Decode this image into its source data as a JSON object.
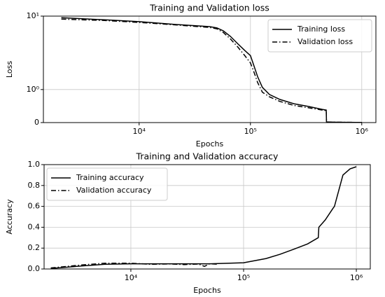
{
  "chart_data": [
    {
      "type": "line",
      "title": "Training and Validation loss",
      "xlabel": "Epochs",
      "ylabel": "Loss",
      "xscale": "log",
      "yscale": "symlog",
      "grid": true,
      "legend": "upper right",
      "xlim": [
        1380,
        1340000
      ],
      "xticks": [
        {
          "value": 10000,
          "label": "10⁴"
        },
        {
          "value": 100000,
          "label": "10⁵"
        },
        {
          "value": 1000000,
          "label": "10⁶"
        }
      ],
      "ylim": [
        0,
        10
      ],
      "yticks": [
        0,
        {
          "value": 1,
          "label": "10⁰"
        },
        {
          "value": 10,
          "label": "10¹"
        }
      ],
      "series": [
        {
          "name": "Training loss",
          "color": "#000000",
          "linestyle": "solid",
          "x": [
            2000,
            4900,
            10000,
            21000,
            43000,
            50000,
            57000,
            66000,
            77000,
            89000,
            100000,
            108000,
            116000,
            128000,
            148000,
            184000,
            246000,
            330000,
            440000,
            480000,
            482000,
            600000,
            1000000
          ],
          "values": [
            9.5,
            8.9,
            8.4,
            7.7,
            7.2,
            6.9,
            6.3,
            5.3,
            4.2,
            3.4,
            2.9,
            2.06,
            1.5,
            1.07,
            0.85,
            0.7,
            0.57,
            0.49,
            0.4,
            0.38,
            0.02,
            0.01,
            0.005
          ]
        },
        {
          "name": "Validation loss",
          "color": "#000000",
          "linestyle": "dashdot",
          "x": [
            2000,
            4900,
            10000,
            21000,
            43000,
            50000,
            57000,
            66000,
            77000,
            89000,
            100000,
            108000,
            116000,
            128000,
            148000,
            184000,
            246000,
            330000,
            440000,
            480000,
            482000,
            600000,
            1000000
          ],
          "values": [
            9.1,
            8.7,
            8.2,
            7.6,
            7.0,
            6.7,
            6.0,
            4.9,
            3.8,
            2.9,
            2.3,
            1.7,
            1.25,
            0.92,
            0.78,
            0.64,
            0.52,
            0.45,
            0.38,
            0.36,
            0.02,
            0.01,
            0.005
          ]
        }
      ]
    },
    {
      "type": "line",
      "title": "Training and Validation accuracy",
      "xlabel": "Epochs",
      "ylabel": "Accuracy",
      "xscale": "log",
      "yscale": "linear",
      "grid": true,
      "legend": "upper left",
      "xlim": [
        1700,
        1330000
      ],
      "xticks": [
        {
          "value": 10000,
          "label": "10⁴"
        },
        {
          "value": 100000,
          "label": "10⁵"
        },
        {
          "value": 1000000,
          "label": "10⁶"
        }
      ],
      "ylim": [
        0,
        1
      ],
      "yticks": [
        {
          "value": 0,
          "label": "0.0"
        },
        0.2,
        0.4,
        0.6,
        0.8,
        {
          "value": 1,
          "label": "1.0"
        }
      ],
      "series": [
        {
          "name": "Training accuracy",
          "color": "#000000",
          "linestyle": "solid",
          "x": [
            1950,
            3800,
            5900,
            10000,
            24600,
            50000,
            100000,
            158000,
            210000,
            280000,
            370000,
            460000,
            465000,
            530000,
            620000,
            640000,
            760000,
            880000,
            1000000
          ],
          "values": [
            0.005,
            0.03,
            0.045,
            0.05,
            0.05,
            0.05,
            0.06,
            0.1,
            0.14,
            0.19,
            0.24,
            0.3,
            0.4,
            0.47,
            0.58,
            0.6,
            0.9,
            0.96,
            0.98
          ]
        },
        {
          "name": "Validation accuracy",
          "color": "#000000",
          "linestyle": "dashdot",
          "x": [
            1950,
            3800,
            5900,
            10000,
            15000,
            22000,
            30000,
            40000,
            45000,
            50000,
            60000
          ],
          "values": [
            0.01,
            0.04,
            0.055,
            0.055,
            0.045,
            0.048,
            0.042,
            0.047,
            0.025,
            0.05,
            0.045
          ]
        }
      ]
    }
  ]
}
